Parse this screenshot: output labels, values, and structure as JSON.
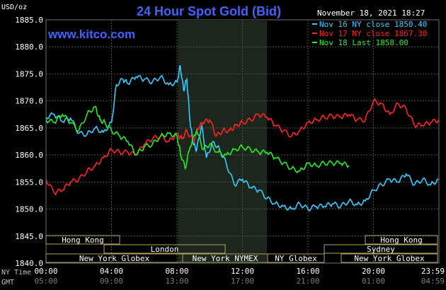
{
  "header": {
    "title": "24 Hour Spot Gold (Bid)",
    "unit": "USD/oz",
    "date": "November 18, 2021 18:27",
    "website": "www.kitco.com"
  },
  "axis": {
    "ny_label": "NY Time",
    "gmt_label": "GMT",
    "ny_ticks": [
      "00:00",
      "04:00",
      "08:00",
      "12:00",
      "16:00",
      "20:00",
      "23:59"
    ],
    "gmt_ticks": [
      "05:00",
      "09:00",
      "13:00",
      "17:00",
      "21:00",
      "01:00",
      "04:59"
    ],
    "y_ticks": [
      "1885.0",
      "1880.0",
      "1875.0",
      "1870.0",
      "1865.0",
      "1860.0",
      "1855.0",
      "1850.0",
      "1845.0",
      "1840.0"
    ]
  },
  "sessions": {
    "hong_kong_left": "Hong Kong",
    "hong_kong_right": "Hong Kong",
    "london": "London",
    "new_york_globex_left": "New York Globex",
    "new_york_nymex": "New York NYMEX",
    "ny_globex": "NY Globex",
    "sydney": "Sydney",
    "new_york_globex_right": "New York Globex"
  },
  "chart_data": {
    "type": "line",
    "title": "24 Hour Spot Gold (Bid)",
    "ylabel": "USD/oz",
    "xlabel": "NY Time",
    "x_units": "hours (NY time)",
    "xlim": [
      0,
      24
    ],
    "ylim": [
      1840,
      1885
    ],
    "grid": true,
    "legend_position": "top-right",
    "series": [
      {
        "name": "Nov 16 NY close 1850.40",
        "color": "#33ccff",
        "x": [
          0,
          0.5,
          1,
          1.5,
          2,
          2.5,
          3,
          3.5,
          4,
          4.3,
          4.7,
          5,
          5.5,
          6,
          6.5,
          7,
          7.5,
          8,
          8.2,
          8.4,
          8.6,
          8.8,
          9,
          9.2,
          9.5,
          9.8,
          10.2,
          10.6,
          11,
          11.5,
          12,
          12.5,
          13,
          13.5,
          14,
          14.5,
          15,
          15.5,
          16,
          16.5,
          17,
          17.5,
          18,
          18.5,
          19,
          19.5,
          20,
          20.5,
          21,
          21.5,
          22,
          22.5,
          23,
          23.5,
          23.98
        ],
        "y": [
          1867.0,
          1867.5,
          1866.2,
          1866.8,
          1864.0,
          1863.8,
          1865.0,
          1864.2,
          1866.0,
          1873.0,
          1874.0,
          1873.2,
          1874.5,
          1874.0,
          1873.5,
          1874.5,
          1873.0,
          1873.5,
          1876.5,
          1872.0,
          1874.0,
          1866.0,
          1862.0,
          1861.0,
          1865.5,
          1859.5,
          1862.5,
          1861.0,
          1858.5,
          1854.5,
          1855.5,
          1854.0,
          1853.5,
          1852.0,
          1851.0,
          1850.5,
          1850.0,
          1851.0,
          1850.0,
          1850.5,
          1850.5,
          1851.0,
          1850.5,
          1851.5,
          1850.8,
          1851.5,
          1853.5,
          1854.5,
          1855.5,
          1855.0,
          1856.5,
          1854.5,
          1855.5,
          1854.5,
          1855.5
        ]
      },
      {
        "name": "Nov 17 NY close 1867.30",
        "color": "#ff2222",
        "x": [
          0,
          0.5,
          1,
          1.5,
          2,
          2.5,
          3,
          3.5,
          4,
          4.5,
          5,
          5.5,
          6,
          6.5,
          7,
          7.5,
          8,
          8.3,
          8.6,
          9,
          9.3,
          9.6,
          10,
          10.4,
          10.8,
          11.2,
          11.6,
          12,
          12.5,
          13,
          13.5,
          14,
          14.5,
          15,
          15.5,
          16,
          16.5,
          17,
          17.5,
          18,
          18.5,
          19,
          19.5,
          20,
          20.5,
          21,
          21.5,
          22,
          22.5,
          23,
          23.5,
          23.98
        ],
        "y": [
          1855.5,
          1853.0,
          1853.5,
          1855.0,
          1855.5,
          1857.0,
          1858.0,
          1859.5,
          1861.0,
          1860.5,
          1860.5,
          1860.0,
          1862.0,
          1863.0,
          1863.5,
          1862.5,
          1864.0,
          1863.0,
          1864.5,
          1862.5,
          1865.0,
          1866.0,
          1866.5,
          1863.5,
          1864.5,
          1864.5,
          1865.5,
          1866.0,
          1866.5,
          1867.5,
          1867.0,
          1865.5,
          1864.5,
          1863.5,
          1864.5,
          1866.0,
          1866.5,
          1867.0,
          1867.2,
          1867.0,
          1867.5,
          1866.5,
          1866.5,
          1870.0,
          1869.5,
          1867.5,
          1869.5,
          1868.5,
          1865.5,
          1865.5,
          1866.0,
          1866.5
        ]
      },
      {
        "name": "Nov 18 Last 1858.00",
        "color": "#22ee22",
        "x": [
          0,
          0.5,
          1,
          1.5,
          2,
          2.5,
          3,
          3.3,
          3.6,
          4,
          4.5,
          5,
          5.5,
          6,
          6.5,
          7,
          7.5,
          8,
          8.2,
          8.5,
          8.8,
          9.2,
          9.6,
          10,
          10.5,
          11,
          11.5,
          12,
          12.5,
          13,
          13.5,
          14,
          14.5,
          15,
          15.5,
          16,
          16.5,
          17,
          17.5,
          18,
          18.5
        ],
        "y": [
          1866.5,
          1866.0,
          1867.5,
          1866.0,
          1864.5,
          1867.5,
          1869.0,
          1866.5,
          1866.0,
          1864.5,
          1863.5,
          1862.5,
          1860.0,
          1861.5,
          1862.0,
          1863.5,
          1864.0,
          1863.5,
          1860.5,
          1857.5,
          1861.5,
          1864.5,
          1861.0,
          1862.0,
          1860.5,
          1860.0,
          1861.0,
          1861.5,
          1861.0,
          1860.5,
          1860.5,
          1859.5,
          1858.5,
          1857.5,
          1857.0,
          1858.5,
          1858.0,
          1858.5,
          1858.5,
          1858.5,
          1858.0
        ]
      }
    ]
  }
}
